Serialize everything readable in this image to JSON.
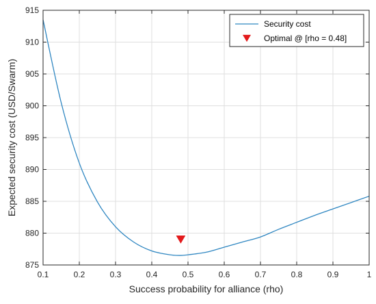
{
  "chart_data": {
    "type": "line",
    "xlabel": "Success probability for alliance (rho)",
    "ylabel": "Expected security cost (USD/Swarm)",
    "xlim": [
      0.1,
      1.0
    ],
    "ylim": [
      875,
      915
    ],
    "xticks": [
      "0.1",
      "0.2",
      "0.3",
      "0.4",
      "0.5",
      "0.6",
      "0.7",
      "0.8",
      "0.9",
      "1"
    ],
    "yticks": [
      "875",
      "880",
      "885",
      "890",
      "895",
      "900",
      "905",
      "910",
      "915"
    ],
    "grid": true,
    "legend_position": "top-right",
    "series": [
      {
        "name": "Security cost",
        "kind": "line",
        "color": "#2e86c1",
        "x": [
          0.1,
          0.15,
          0.2,
          0.25,
          0.3,
          0.35,
          0.4,
          0.45,
          0.48,
          0.5,
          0.55,
          0.6,
          0.65,
          0.7,
          0.75,
          0.8,
          0.85,
          0.9,
          0.95,
          1.0
        ],
        "y": [
          913.5,
          900.5,
          891.0,
          884.9,
          881.0,
          878.6,
          877.2,
          876.6,
          876.5,
          876.6,
          877.0,
          877.8,
          878.6,
          879.4,
          880.6,
          881.7,
          882.8,
          883.8,
          884.8,
          885.8
        ]
      },
      {
        "name": "Optimal @ [rho = 0.48]",
        "kind": "marker",
        "marker": "triangle-down",
        "color": "#e31a1c",
        "x": [
          0.48
        ],
        "y": [
          879.0
        ]
      }
    ]
  }
}
